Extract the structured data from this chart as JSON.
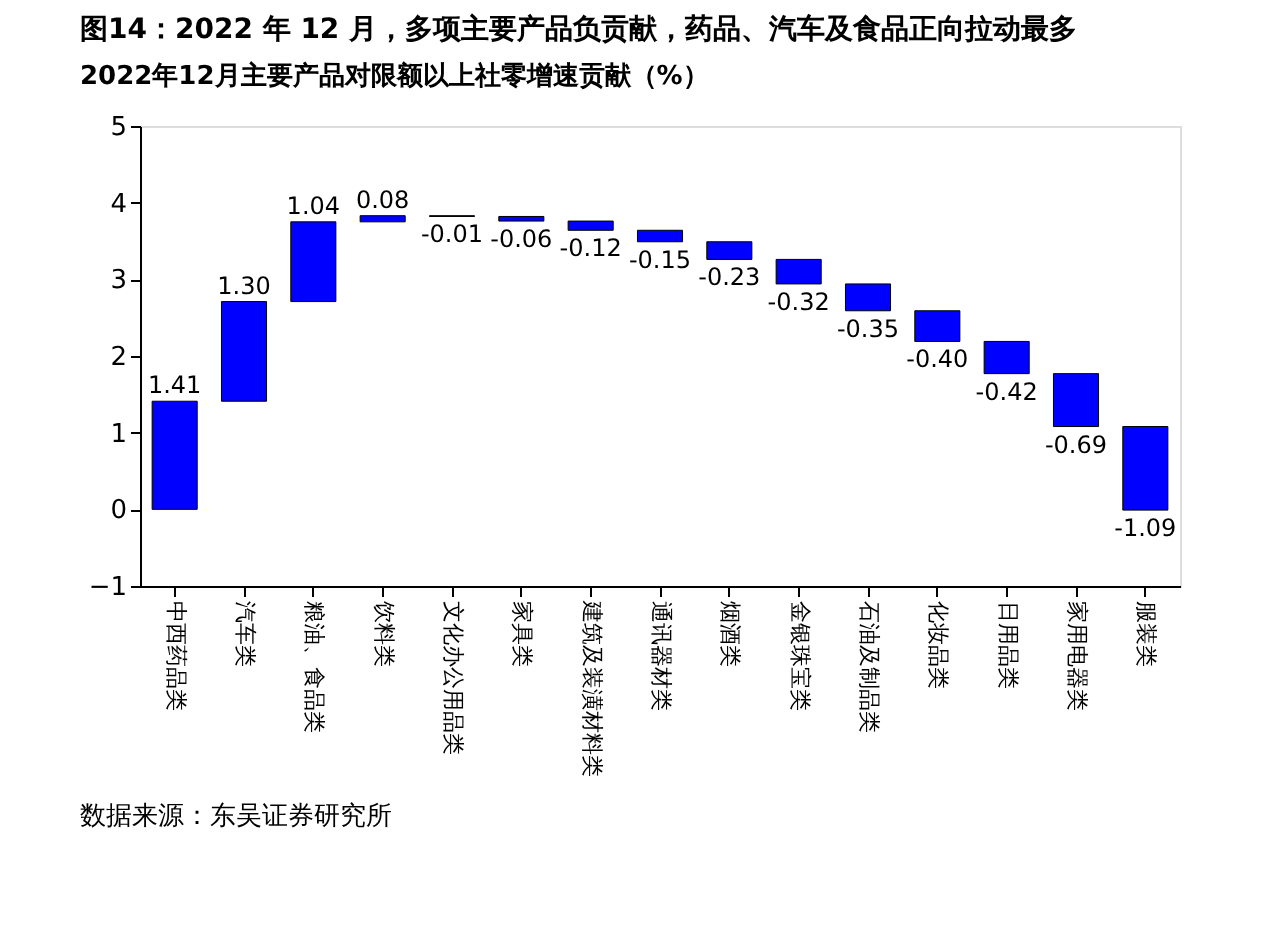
{
  "chart_data": {
    "type": "bar",
    "title": "图14：2022 年 12 月，多项主要产品负贡献，药品、汽车及食品正向拉动最多",
    "subtitle": "2022年12月主要产品对限额以上社零增速贡献（%）",
    "categories": [
      "中西药品类",
      "汽车类",
      "粮油、食品类",
      "饮料类",
      "文化办公用品类",
      "家具类",
      "建筑及装潢材料类",
      "通讯器材类",
      "烟酒类",
      "金银珠宝类",
      "石油及制品类",
      "化妆品类",
      "日用品类",
      "家用电器类",
      "服装类"
    ],
    "values": [
      1.41,
      1.3,
      1.04,
      0.08,
      -0.01,
      -0.06,
      -0.12,
      -0.15,
      -0.23,
      -0.32,
      -0.35,
      -0.4,
      -0.42,
      -0.69,
      -1.09
    ],
    "base": [
      0,
      1.41,
      2.71,
      3.75,
      3.83,
      3.82,
      3.76,
      3.64,
      3.49,
      3.26,
      2.94,
      2.59,
      2.19,
      1.77,
      1.08
    ],
    "value_labels": [
      "1.41",
      "1.30",
      "1.04",
      "0.08",
      "-0.01",
      "-0.06",
      "-0.12",
      "-0.15",
      "-0.23",
      "-0.32",
      "-0.35",
      "-0.40",
      "-0.42",
      "-0.69",
      "-1.09"
    ],
    "color": "#0000ff",
    "ylim": [
      -1,
      5
    ],
    "yticks": [
      -1,
      0,
      1,
      2,
      3,
      4,
      5
    ],
    "grid": false,
    "annotations": [
      "数据来源：东吴证券研究所"
    ]
  }
}
